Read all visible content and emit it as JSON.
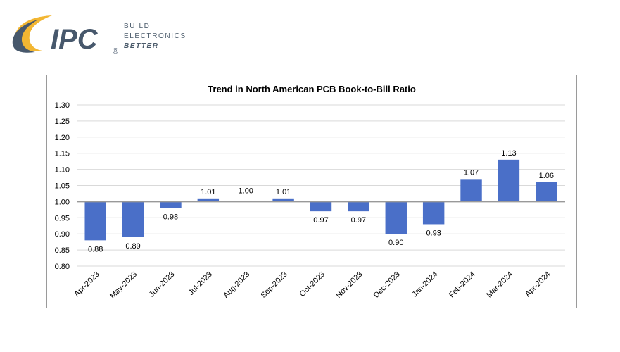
{
  "logo": {
    "brand": "IPC",
    "registered": "®",
    "tagline": [
      "BUILD",
      "ELECTRONICS",
      "BETTER"
    ]
  },
  "colors": {
    "bar": "#4a6fc8",
    "baseline": "#999999",
    "grid": "#d9d9d9",
    "logo_gold": "#f2b632",
    "logo_navy": "#47586c"
  },
  "chart_data": {
    "type": "bar",
    "title": "Trend in North American PCB Book-to-Bill Ratio",
    "xlabel": "",
    "ylabel": "",
    "baseline": 1.0,
    "ylim": [
      0.8,
      1.3
    ],
    "yticks": [
      "0.80",
      "0.85",
      "0.90",
      "0.95",
      "1.00",
      "1.05",
      "1.10",
      "1.15",
      "1.20",
      "1.25",
      "1.30"
    ],
    "grid": true,
    "categories": [
      "Apr-2023",
      "May-2023",
      "Jun-2023",
      "Jul-2023",
      "Aug-2023",
      "Sep-2023",
      "Oct-2023",
      "Nov-2023",
      "Dec-2023",
      "Jan-2024",
      "Feb-2024",
      "Mar-2024",
      "Apr-2024"
    ],
    "values": [
      0.88,
      0.89,
      0.98,
      1.01,
      1.0,
      1.01,
      0.97,
      0.97,
      0.9,
      0.93,
      1.07,
      1.13,
      1.06
    ],
    "labels": [
      "0.88",
      "0.89",
      "0.98",
      "1.01",
      "1.00",
      "1.01",
      "0.97",
      "0.97",
      "0.90",
      "0.93",
      "1.07",
      "1.13",
      "1.06"
    ]
  }
}
